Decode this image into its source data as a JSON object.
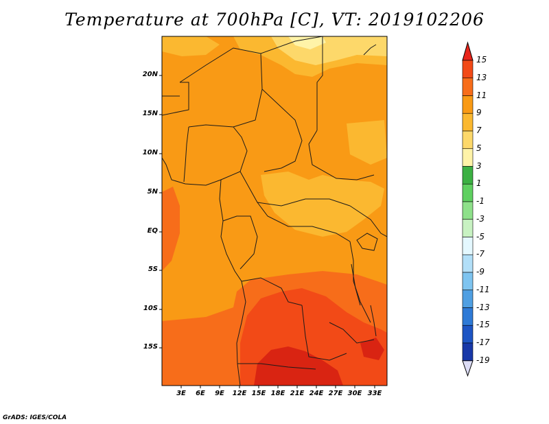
{
  "title": "Temperature at 700hPa [C], VT: 2019102206",
  "credit": "GrADS: IGES/COLA",
  "lat_labels": [
    "20N",
    "15N",
    "10N",
    "5N",
    "EQ",
    "5S",
    "10S",
    "15S"
  ],
  "lon_labels": [
    "3E",
    "6E",
    "9E",
    "12E",
    "15E",
    "18E",
    "21E",
    "24E",
    "27E",
    "30E",
    "33E"
  ],
  "colorbar": {
    "labels": [
      "15",
      "13",
      "11",
      "9",
      "7",
      "5",
      "3",
      "1",
      "-1",
      "-3",
      "-5",
      "-7",
      "-9",
      "-11",
      "-13",
      "-15",
      "-17",
      "-19"
    ],
    "colors": [
      "#e8241a",
      "#f24a17",
      "#f76d1a",
      "#f99a15",
      "#fbb830",
      "#fdd86a",
      "#fff3a8",
      "#3cb043",
      "#5fd060",
      "#8ee08a",
      "#c8f2c2",
      "#e4f8ff",
      "#b2dff8",
      "#7ec4f0",
      "#4f9fe2",
      "#2e7ad6",
      "#1d55c4",
      "#1838a8",
      "#101d80"
    ],
    "top_arrow_color": "#e8241a",
    "bottom_arrow_color": "#dcdcf5"
  },
  "palette": {
    "base": "#f99a15",
    "light": "#fbb830",
    "lighter": "#fdd86a",
    "palest": "#fff3a8",
    "warm": "#f76d1a",
    "hot": "#f24a17",
    "hottest": "#d92412"
  }
}
